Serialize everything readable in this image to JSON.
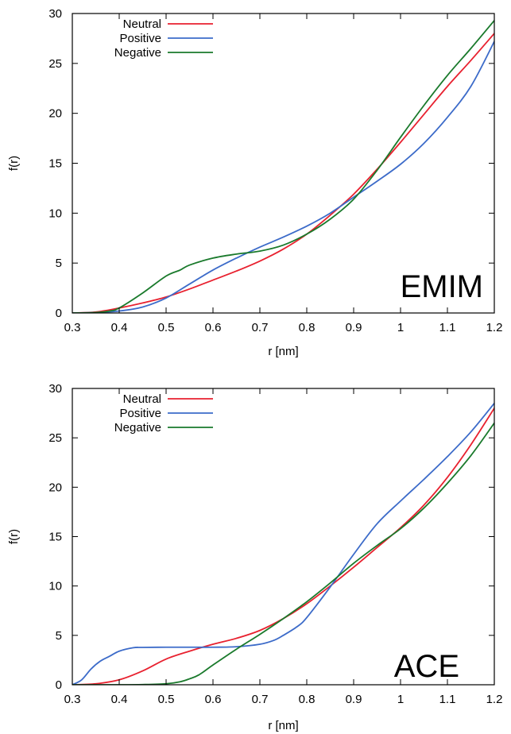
{
  "chart_data": [
    {
      "type": "line",
      "panel_label": "EMIM",
      "xlabel": "r [nm]",
      "ylabel": "f(r)",
      "xlim": [
        0.3,
        1.2
      ],
      "ylim": [
        0,
        30
      ],
      "x_ticks": [
        0.3,
        0.4,
        0.5,
        0.6,
        0.7,
        0.8,
        0.9,
        1,
        1.1,
        1.2
      ],
      "y_ticks": [
        0,
        5,
        10,
        15,
        20,
        25,
        30
      ],
      "legend_position": "top-left",
      "series": [
        {
          "name": "Neutral",
          "color": "#e8212f",
          "x": [
            0.3,
            0.35,
            0.4,
            0.45,
            0.5,
            0.55,
            0.6,
            0.65,
            0.7,
            0.75,
            0.8,
            0.85,
            0.9,
            0.95,
            1.0,
            1.05,
            1.1,
            1.15,
            1.2
          ],
          "y": [
            0,
            0.1,
            0.5,
            1.0,
            1.6,
            2.4,
            3.3,
            4.2,
            5.2,
            6.4,
            7.9,
            9.8,
            11.9,
            14.4,
            17.1,
            19.9,
            22.7,
            25.3,
            28.0
          ]
        },
        {
          "name": "Positive",
          "color": "#3c6bc9",
          "x": [
            0.3,
            0.35,
            0.4,
            0.45,
            0.5,
            0.55,
            0.6,
            0.65,
            0.7,
            0.75,
            0.8,
            0.85,
            0.9,
            0.95,
            1.0,
            1.05,
            1.1,
            1.15,
            1.2
          ],
          "y": [
            0,
            0.05,
            0.2,
            0.6,
            1.5,
            2.9,
            4.3,
            5.5,
            6.6,
            7.6,
            8.7,
            10.0,
            11.6,
            13.2,
            14.9,
            17.0,
            19.6,
            22.7,
            27.2
          ]
        },
        {
          "name": "Negative",
          "color": "#1a7a2c",
          "x": [
            0.3,
            0.35,
            0.38,
            0.4,
            0.45,
            0.5,
            0.53,
            0.55,
            0.6,
            0.65,
            0.7,
            0.75,
            0.8,
            0.85,
            0.9,
            0.95,
            1.0,
            1.05,
            1.1,
            1.15,
            1.2
          ],
          "y": [
            0,
            0.05,
            0.2,
            0.5,
            2.0,
            3.7,
            4.3,
            4.8,
            5.5,
            5.9,
            6.2,
            6.8,
            7.9,
            9.4,
            11.4,
            14.3,
            17.6,
            20.8,
            23.8,
            26.5,
            29.3
          ]
        }
      ]
    },
    {
      "type": "line",
      "panel_label": "ACE",
      "xlabel": "r [nm]",
      "ylabel": "f(r)",
      "xlim": [
        0.3,
        1.2
      ],
      "ylim": [
        0,
        30
      ],
      "x_ticks": [
        0.3,
        0.4,
        0.5,
        0.6,
        0.7,
        0.8,
        0.9,
        1,
        1.1,
        1.2
      ],
      "y_ticks": [
        0,
        5,
        10,
        15,
        20,
        25,
        30
      ],
      "legend_position": "top-left",
      "series": [
        {
          "name": "Neutral",
          "color": "#e8212f",
          "x": [
            0.3,
            0.35,
            0.4,
            0.45,
            0.5,
            0.55,
            0.6,
            0.65,
            0.7,
            0.75,
            0.8,
            0.85,
            0.9,
            0.95,
            1.0,
            1.05,
            1.1,
            1.15,
            1.2
          ],
          "y": [
            0,
            0.1,
            0.5,
            1.4,
            2.6,
            3.4,
            4.1,
            4.7,
            5.5,
            6.7,
            8.2,
            10.0,
            11.9,
            13.9,
            15.9,
            18.2,
            21.0,
            24.3,
            28.0
          ]
        },
        {
          "name": "Positive",
          "color": "#3c6bc9",
          "x": [
            0.3,
            0.32,
            0.34,
            0.36,
            0.38,
            0.4,
            0.43,
            0.45,
            0.5,
            0.55,
            0.6,
            0.65,
            0.7,
            0.73,
            0.75,
            0.78,
            0.8,
            0.85,
            0.9,
            0.95,
            1.0,
            1.05,
            1.1,
            1.15,
            1.2
          ],
          "y": [
            0,
            0.5,
            1.6,
            2.4,
            2.9,
            3.4,
            3.75,
            3.78,
            3.8,
            3.8,
            3.8,
            3.85,
            4.1,
            4.5,
            5.0,
            5.9,
            6.8,
            9.9,
            13.2,
            16.3,
            18.6,
            20.8,
            23.1,
            25.6,
            28.5
          ]
        },
        {
          "name": "Negative",
          "color": "#1a7a2c",
          "x": [
            0.3,
            0.4,
            0.45,
            0.5,
            0.53,
            0.55,
            0.57,
            0.6,
            0.65,
            0.7,
            0.75,
            0.8,
            0.85,
            0.9,
            0.95,
            1.0,
            1.05,
            1.1,
            1.15,
            1.2
          ],
          "y": [
            0,
            0,
            0.02,
            0.1,
            0.3,
            0.6,
            1.0,
            2.0,
            3.6,
            5.1,
            6.7,
            8.4,
            10.3,
            12.3,
            14.1,
            15.8,
            17.9,
            20.4,
            23.2,
            26.5
          ]
        }
      ]
    }
  ]
}
